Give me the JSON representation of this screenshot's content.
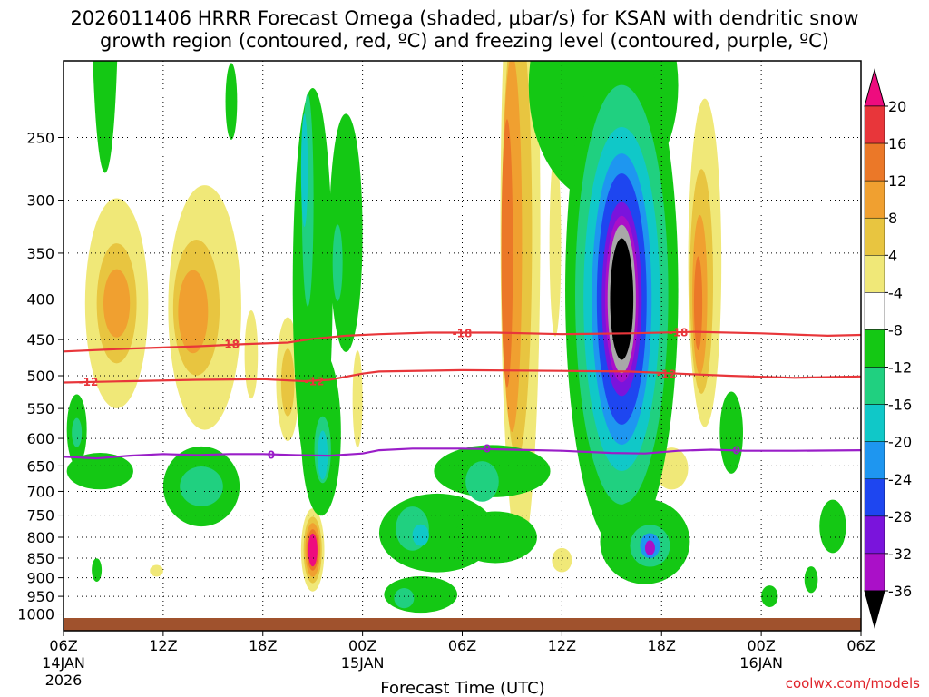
{
  "title_line1": "2026011406 HRRR Forecast Omega (shaded, µbar/s) for KSAN with dendritic snow",
  "title_line2": "growth region (contoured, red, ºC) and freezing level (contoured, purple, ºC)",
  "watermark": "coolwx.com/models",
  "chart_data": {
    "type": "heatmap",
    "title": "2026011406 HRRR Forecast Omega (shaded, µbar/s) for KSAN with dendritic snow growth region (contoured, red, ºC) and freezing level (contoured, purple, ºC)",
    "xlabel": "Forecast Time (UTC)",
    "ylabel": "",
    "x_range_hours": [
      0,
      48
    ],
    "x_ticks": [
      {
        "h": 0,
        "label": "06Z",
        "sub1": "14JAN",
        "sub2": "2026"
      },
      {
        "h": 6,
        "label": "12Z"
      },
      {
        "h": 12,
        "label": "18Z"
      },
      {
        "h": 18,
        "label": "00Z",
        "sub1": "15JAN"
      },
      {
        "h": 24,
        "label": "06Z"
      },
      {
        "h": 30,
        "label": "12Z"
      },
      {
        "h": 36,
        "label": "18Z"
      },
      {
        "h": 42,
        "label": "00Z",
        "sub1": "16JAN"
      },
      {
        "h": 48,
        "label": "06Z"
      }
    ],
    "y_label_levels": [
      250,
      300,
      350,
      400,
      450,
      500,
      550,
      600,
      650,
      700,
      750,
      800,
      850,
      900,
      950,
      1000
    ],
    "y_grid_levels": [
      200,
      250,
      300,
      350,
      400,
      450,
      500,
      550,
      600,
      650,
      700,
      750,
      800,
      850,
      900,
      950,
      1000
    ],
    "p_top": 200,
    "p_bottom": 1050,
    "colorbar": {
      "labels": [
        "20",
        "16",
        "12",
        "8",
        "4",
        "-4",
        "-8",
        "-12",
        "-16",
        "-20",
        "-24",
        "-28",
        "-32",
        "-36"
      ],
      "colors": [
        "#ee0c7e",
        "#e8363a",
        "#eb7828",
        "#f0a030",
        "#e8c540",
        "#f0e878",
        "#ffffff",
        "#14c814",
        "#20d080",
        "#10c8c8",
        "#1e96f0",
        "#1e46f0",
        "#7a14dc",
        "#aa10c8",
        "#a8a8a8",
        "#000000"
      ]
    },
    "omega_features": [
      {
        "h": 3.2,
        "p": 405,
        "rh": 1.9,
        "rp": 120,
        "level": 4
      },
      {
        "h": 3.2,
        "p": 405,
        "rh": 1.2,
        "rp": 70,
        "level": 8
      },
      {
        "h": 3.2,
        "p": 405,
        "rh": 0.8,
        "rp": 40,
        "level": 12
      },
      {
        "h": 8.5,
        "p": 410,
        "rh": 2.2,
        "rp": 140,
        "level": 4
      },
      {
        "h": 8.0,
        "p": 410,
        "rh": 1.4,
        "rp": 80,
        "level": 8
      },
      {
        "h": 7.8,
        "p": 415,
        "rh": 0.9,
        "rp": 50,
        "level": 12
      },
      {
        "h": 11.3,
        "p": 470,
        "rh": 0.4,
        "rp": 60,
        "level": 4
      },
      {
        "h": 13.5,
        "p": 505,
        "rh": 0.7,
        "rp": 90,
        "level": 4
      },
      {
        "h": 13.5,
        "p": 510,
        "rh": 0.4,
        "rp": 50,
        "level": 8
      },
      {
        "h": 17.7,
        "p": 535,
        "rh": 0.3,
        "rp": 75,
        "level": 4
      },
      {
        "h": 27.5,
        "p": 320,
        "rh": 1.2,
        "rp": 240,
        "level": 4
      },
      {
        "h": 27.3,
        "p": 330,
        "rh": 0.9,
        "rp": 190,
        "level": 8
      },
      {
        "h": 27.0,
        "p": 340,
        "rh": 0.6,
        "rp": 170,
        "level": 12
      },
      {
        "h": 26.7,
        "p": 350,
        "rh": 0.35,
        "rp": 130,
        "level": 16
      },
      {
        "h": 29.6,
        "p": 340,
        "rh": 0.35,
        "rp": 90,
        "level": 4
      },
      {
        "h": 38.6,
        "p": 360,
        "rh": 1.0,
        "rp": 160,
        "level": 4
      },
      {
        "h": 38.4,
        "p": 380,
        "rh": 0.7,
        "rp": 120,
        "level": 8
      },
      {
        "h": 38.3,
        "p": 395,
        "rh": 0.45,
        "rp": 90,
        "level": 12
      },
      {
        "h": 38.2,
        "p": 405,
        "rh": 0.25,
        "rp": 55,
        "level": 16
      },
      {
        "h": 36.6,
        "p": 655,
        "rh": 1.0,
        "rp": 40,
        "level": 4
      },
      {
        "h": 21.7,
        "p": 820,
        "rh": 0.3,
        "rp": 30,
        "level": 4
      },
      {
        "h": 30.0,
        "p": 855,
        "rh": 0.6,
        "rp": 30,
        "level": 4
      },
      {
        "h": 5.6,
        "p": 882,
        "rh": 0.4,
        "rp": 15,
        "level": 4
      },
      {
        "h": 15.0,
        "p": 830,
        "rh": 0.7,
        "rp": 100,
        "level": 4
      },
      {
        "h": 15.0,
        "p": 830,
        "rh": 0.55,
        "rp": 80,
        "level": 8
      },
      {
        "h": 15.0,
        "p": 830,
        "rh": 0.45,
        "rp": 65,
        "level": 12
      },
      {
        "h": 15.0,
        "p": 830,
        "rh": 0.35,
        "rp": 50,
        "level": 16
      },
      {
        "h": 15.0,
        "p": 830,
        "rh": 0.28,
        "rp": 40,
        "level": 20
      },
      {
        "h": 32.5,
        "p": 215,
        "rh": 4.5,
        "rp": 70,
        "level": -4
      },
      {
        "h": 33.6,
        "p": 390,
        "rh": 3.4,
        "rp": 250,
        "level": -4
      },
      {
        "h": 33.6,
        "p": 395,
        "rh": 2.8,
        "rp": 215,
        "level": -8
      },
      {
        "h": 33.6,
        "p": 400,
        "rh": 2.3,
        "rp": 185,
        "level": -12
      },
      {
        "h": 33.6,
        "p": 400,
        "rh": 1.8,
        "rp": 160,
        "level": -16
      },
      {
        "h": 33.6,
        "p": 400,
        "rh": 1.5,
        "rp": 140,
        "level": -20
      },
      {
        "h": 33.6,
        "p": 400,
        "rh": 1.2,
        "rp": 110,
        "level": -24
      },
      {
        "h": 33.6,
        "p": 400,
        "rh": 1.0,
        "rp": 95,
        "level": -28
      },
      {
        "h": 33.6,
        "p": 400,
        "rh": 0.85,
        "rp": 85,
        "level": -32
      },
      {
        "h": 33.6,
        "p": 400,
        "rh": 0.7,
        "rp": 70,
        "level": -36
      },
      {
        "h": 15.0,
        "p": 385,
        "rh": 1.2,
        "rp": 200,
        "level": -4
      },
      {
        "h": 14.7,
        "p": 300,
        "rh": 0.35,
        "rp": 90,
        "level": -8
      },
      {
        "h": 14.5,
        "p": 275,
        "rh": 0.2,
        "rp": 45,
        "level": -12
      },
      {
        "h": 17.0,
        "p": 330,
        "rh": 1.0,
        "rp": 110,
        "level": -4
      },
      {
        "h": 16.5,
        "p": 360,
        "rh": 0.3,
        "rp": 40,
        "level": -8
      },
      {
        "h": 15.5,
        "p": 590,
        "rh": 1.2,
        "rp": 140,
        "level": -4
      },
      {
        "h": 15.6,
        "p": 620,
        "rh": 0.5,
        "rp": 60,
        "level": -8
      },
      {
        "h": 15.6,
        "p": 630,
        "rh": 0.3,
        "rp": 45,
        "level": -12
      },
      {
        "h": 25.8,
        "p": 660,
        "rh": 3.5,
        "rp": 50,
        "level": -4
      },
      {
        "h": 25.2,
        "p": 680,
        "rh": 1.0,
        "rp": 40,
        "level": -8
      },
      {
        "h": 8.3,
        "p": 690,
        "rh": 2.3,
        "rp": 80,
        "level": -4
      },
      {
        "h": 8.3,
        "p": 690,
        "rh": 1.3,
        "rp": 40,
        "level": -8
      },
      {
        "h": 2.2,
        "p": 660,
        "rh": 2.0,
        "rp": 35,
        "level": -4
      },
      {
        "h": 0.8,
        "p": 585,
        "rh": 0.6,
        "rp": 60,
        "level": -4
      },
      {
        "h": 0.8,
        "p": 590,
        "rh": 0.3,
        "rp": 25,
        "level": -8
      },
      {
        "h": 22.5,
        "p": 790,
        "rh": 3.5,
        "rp": 90,
        "level": -4
      },
      {
        "h": 21.0,
        "p": 780,
        "rh": 1.0,
        "rp": 50,
        "level": -8
      },
      {
        "h": 21.5,
        "p": 795,
        "rh": 0.5,
        "rp": 25,
        "level": -12
      },
      {
        "h": 26.0,
        "p": 800,
        "rh": 2.5,
        "rp": 60,
        "level": -4
      },
      {
        "h": 35.0,
        "p": 810,
        "rh": 2.7,
        "rp": 100,
        "level": -4
      },
      {
        "h": 35.3,
        "p": 820,
        "rh": 1.2,
        "rp": 50,
        "level": -8
      },
      {
        "h": 35.3,
        "p": 820,
        "rh": 0.6,
        "rp": 30,
        "level": -16
      },
      {
        "h": 35.3,
        "p": 825,
        "rh": 0.3,
        "rp": 18,
        "level": -28
      },
      {
        "h": 21.5,
        "p": 945,
        "rh": 2.2,
        "rp": 50,
        "level": -4
      },
      {
        "h": 20.5,
        "p": 955,
        "rh": 0.6,
        "rp": 28,
        "level": -8
      },
      {
        "h": 2.5,
        "p": 160,
        "rh": 0.8,
        "rp": 80,
        "level": -4
      },
      {
        "h": 10.1,
        "p": 225,
        "rh": 0.35,
        "rp": 25,
        "level": -4
      },
      {
        "h": 46.3,
        "p": 775,
        "rh": 0.8,
        "rp": 60,
        "level": -4
      },
      {
        "h": 45.0,
        "p": 905,
        "rh": 0.4,
        "rp": 35,
        "level": -4
      },
      {
        "h": 42.5,
        "p": 950,
        "rh": 0.5,
        "rp": 30,
        "level": -4
      },
      {
        "h": 2.0,
        "p": 880,
        "rh": 0.3,
        "rp": 30,
        "level": -4
      },
      {
        "h": 40.2,
        "p": 590,
        "rh": 0.7,
        "rp": 70,
        "level": -4
      }
    ],
    "contours": [
      {
        "name": "dgz-upper",
        "color": "#e8363a",
        "label": "-18",
        "points": [
          [
            0,
            466
          ],
          [
            4,
            462
          ],
          [
            8,
            459
          ],
          [
            11,
            456
          ],
          [
            13.5,
            454
          ],
          [
            15,
            449
          ],
          [
            17,
            445
          ],
          [
            19,
            443
          ],
          [
            22,
            441
          ],
          [
            26,
            441
          ],
          [
            30,
            443
          ],
          [
            34,
            442
          ],
          [
            38,
            440
          ],
          [
            42,
            442
          ],
          [
            46,
            445
          ],
          [
            48,
            444
          ]
        ],
        "label_at": [
          [
            10,
            455
          ],
          [
            24,
            441
          ],
          [
            37,
            440
          ]
        ]
      },
      {
        "name": "dgz-lower",
        "color": "#e8363a",
        "label": "-12",
        "points": [
          [
            0,
            510
          ],
          [
            4,
            508
          ],
          [
            8,
            506
          ],
          [
            12,
            505
          ],
          [
            14.5,
            508
          ],
          [
            16,
            506
          ],
          [
            18,
            497
          ],
          [
            19,
            494
          ],
          [
            24,
            492
          ],
          [
            30,
            493
          ],
          [
            34,
            494
          ],
          [
            37,
            497
          ],
          [
            40,
            500
          ],
          [
            44,
            503
          ],
          [
            48,
            501
          ]
        ],
        "label_at": [
          [
            1.5,
            508
          ],
          [
            15.1,
            507
          ],
          [
            36.3,
            497
          ]
        ]
      },
      {
        "name": "freezing-level",
        "color": "#9a1ec8",
        "label": "0",
        "points": [
          [
            0,
            633
          ],
          [
            2,
            636
          ],
          [
            4,
            631
          ],
          [
            6,
            628
          ],
          [
            8,
            630
          ],
          [
            10,
            628
          ],
          [
            12,
            628
          ],
          [
            14,
            630
          ],
          [
            16,
            631
          ],
          [
            18,
            627
          ],
          [
            19,
            621
          ],
          [
            21,
            618
          ],
          [
            24,
            618
          ],
          [
            27,
            620
          ],
          [
            30,
            622
          ],
          [
            33,
            626
          ],
          [
            35,
            627
          ],
          [
            37,
            622
          ],
          [
            39,
            620
          ],
          [
            41,
            622
          ],
          [
            44,
            622
          ],
          [
            48,
            621
          ]
        ],
        "label_at": [
          [
            12.5,
            628
          ],
          [
            25.5,
            617
          ],
          [
            40.5,
            620
          ]
        ]
      }
    ]
  }
}
